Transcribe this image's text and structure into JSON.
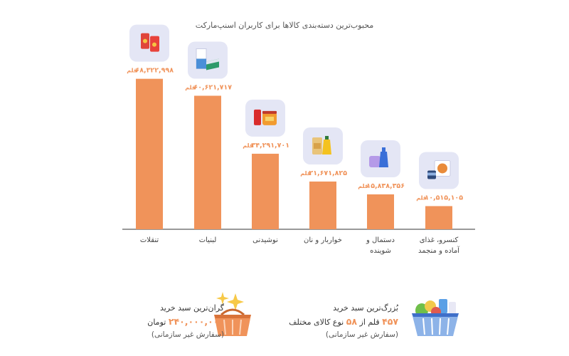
{
  "chart_data": {
    "type": "bar",
    "title": "محبوب‌ترین دسته‌بندی کالاها برای کاربران اسنپ‌مارکت",
    "direction": "rtl",
    "unit": "قلم",
    "categories": [
      [
        "تنقلات"
      ],
      [
        "لبنیات"
      ],
      [
        "نوشیدنی"
      ],
      [
        "خواربار و نان"
      ],
      [
        "دستمال و",
        "شوینده"
      ],
      [
        "کنسرو، غذای",
        "آماده و منجمد"
      ]
    ],
    "values": [
      68322998,
      60621717,
      34291701,
      21671825,
      15838356,
      10515105
    ],
    "value_labels": [
      "۶۸,۳۲۲,۹۹۸",
      "۶۰,۶۲۱,۷۱۷",
      "۳۴,۲۹۱,۷۰۱",
      "۲۱,۶۷۱,۸۲۵",
      "۱۵,۸۳۸,۳۵۶",
      "۱۰,۵۱۵,۱۰۵"
    ],
    "icons": [
      "chips-icon",
      "milk-carton-icon",
      "soda-can-icon",
      "pasta-oil-icon",
      "detergent-icon",
      "canned-food-icon"
    ],
    "ylim": [
      0,
      75000000
    ],
    "grid": false,
    "colors": {
      "bar": "#f0935a",
      "label": "#f0935a",
      "axis": "#333333",
      "icon_bg": "#e4e6f5"
    }
  },
  "stats": {
    "largest_cart": {
      "title": "بُزرگ‌ترین سبد خرید",
      "count": "۴۵۷",
      "mid1": "قلم از",
      "kinds": "۵۸",
      "mid2": "نوع کالای مختلف",
      "note": "(سفارش غیر سازمانی)",
      "icon": "grocery-basket-icon"
    },
    "most_expensive_cart": {
      "title": "گران‌ترین سبد خرید",
      "amount": "۲۴۰,۰۰۰,۰۰۰",
      "currency": "تومان",
      "note": "(سفارش غیر سازمانی)",
      "icon": "sparkle-basket-icon"
    }
  }
}
